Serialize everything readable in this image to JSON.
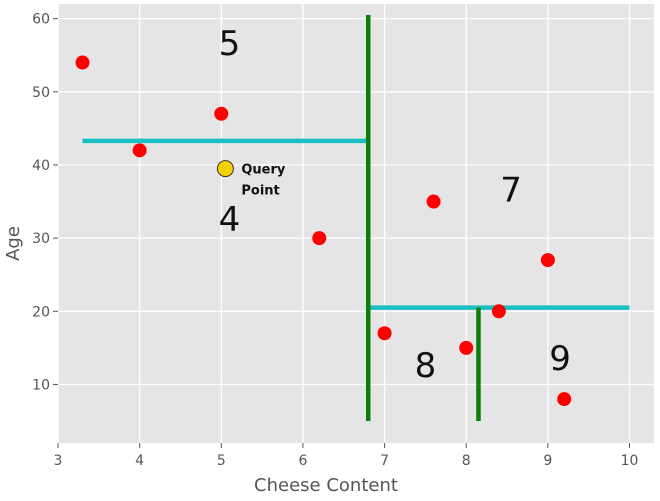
{
  "chart_data": {
    "type": "scatter",
    "xlabel": "Cheese Content",
    "ylabel": "Age",
    "xlim": [
      3,
      10.3
    ],
    "ylim": [
      2,
      62
    ],
    "x_ticks": [
      3,
      4,
      5,
      6,
      7,
      8,
      9,
      10
    ],
    "y_ticks": [
      10,
      20,
      30,
      40,
      50,
      60
    ],
    "grid": true,
    "colors": {
      "background": "#e5e5e5",
      "grid": "#ffffff",
      "points": "#ff0000",
      "query": "#f5d000",
      "vertical_split": "#0a7d0a",
      "horizontal_split": "#1abfc4"
    },
    "points": [
      {
        "x": 3.3,
        "y": 54
      },
      {
        "x": 4.0,
        "y": 42
      },
      {
        "x": 5.0,
        "y": 47
      },
      {
        "x": 6.2,
        "y": 30
      },
      {
        "x": 7.0,
        "y": 17
      },
      {
        "x": 7.6,
        "y": 35
      },
      {
        "x": 8.0,
        "y": 15
      },
      {
        "x": 8.4,
        "y": 20
      },
      {
        "x": 9.0,
        "y": 27
      },
      {
        "x": 9.2,
        "y": 8
      }
    ],
    "query_point": {
      "x": 5.05,
      "y": 39.5,
      "label_line1": "Query",
      "label_line2": "Point"
    },
    "vertical_splits": [
      {
        "x": 6.8,
        "y_from": 5,
        "y_to": 60.5
      },
      {
        "x": 8.15,
        "y_from": 5,
        "y_to": 20.5
      }
    ],
    "horizontal_splits": [
      {
        "y": 43.3,
        "x_from": 3.3,
        "x_to": 6.8
      },
      {
        "y": 20.5,
        "x_from": 6.8,
        "x_to": 10.0
      }
    ],
    "region_labels": [
      {
        "text": "5",
        "x": 5.1,
        "y": 55
      },
      {
        "text": "4",
        "x": 5.1,
        "y": 31
      },
      {
        "text": "7",
        "x": 8.55,
        "y": 35
      },
      {
        "text": "8",
        "x": 7.5,
        "y": 11
      },
      {
        "text": "9",
        "x": 9.15,
        "y": 12
      }
    ]
  }
}
